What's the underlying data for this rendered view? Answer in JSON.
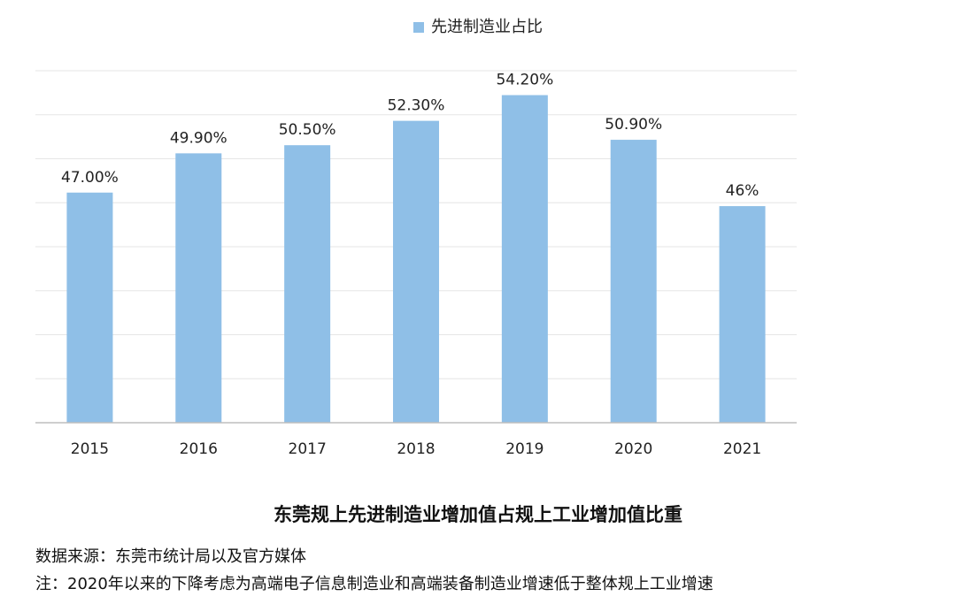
{
  "legend": {
    "label": "先进制造业占比",
    "color": "#8fbfe7"
  },
  "caption": "东莞规上先进制造业增加值占规上工业增加值比重",
  "notes": {
    "source": "数据来源：东莞市统计局以及官方媒体",
    "remark": "注：2020年以来的下降考虑为高端电子信息制造业和高端装备制造业增速低于整体规上工业增速"
  },
  "chart_data": {
    "type": "bar",
    "categories": [
      "2015",
      "2016",
      "2017",
      "2018",
      "2019",
      "2020",
      "2021"
    ],
    "series": [
      {
        "name": "先进制造业占比",
        "values": [
          47.0,
          49.9,
          50.5,
          52.3,
          54.2,
          50.9,
          46.0
        ],
        "data_labels": [
          "47.00%",
          "49.90%",
          "50.50%",
          "52.30%",
          "54.20%",
          "50.90%",
          "46%"
        ]
      }
    ],
    "ylim": [
      30,
      56
    ],
    "grid": true,
    "legend_position": "top-center",
    "bar_color": "#8fbfe7",
    "grid_color": "#e6e6e6",
    "axis_color": "#bdbdbd"
  }
}
